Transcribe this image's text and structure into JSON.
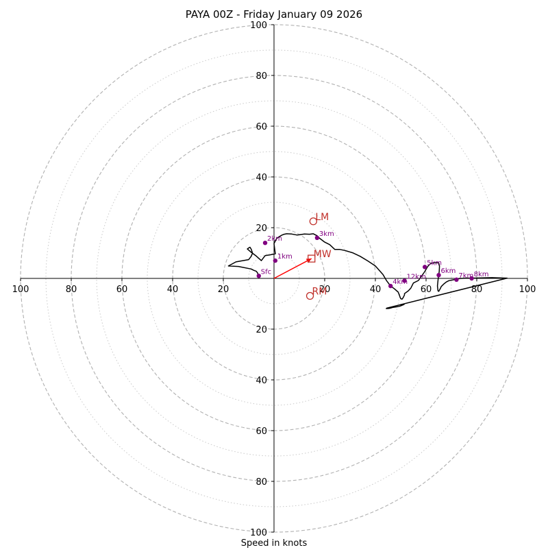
{
  "chart_data": {
    "type": "scatter",
    "title": "PAYA 00Z - Friday January 09 2026",
    "xlabel": "Speed in knots",
    "units": "knots",
    "range": [
      0,
      100
    ],
    "rings_major": [
      20,
      40,
      60,
      80,
      100
    ],
    "rings_minor": [
      10,
      30,
      50,
      70,
      90
    ],
    "tick_labels": {
      "left": [
        "100",
        "80",
        "60",
        "40",
        "20"
      ],
      "right": [
        "20",
        "40",
        "60",
        "80",
        "100"
      ],
      "top": [
        "20",
        "40",
        "60",
        "80",
        "100"
      ],
      "bottom": [
        "20",
        "40",
        "60",
        "80",
        "100"
      ]
    },
    "tick_values": [
      20,
      40,
      60,
      80,
      100
    ],
    "hodograph": {
      "name": "wind profile",
      "u": [
        -6,
        -6.5,
        -7,
        -8,
        -9,
        -14,
        -18,
        -15,
        -10,
        -9,
        -8.5,
        -9,
        -9.5,
        -10,
        -10.5,
        -9,
        -7,
        -5,
        -3.5,
        -1.5,
        0.5,
        0,
        1,
        2,
        3,
        4,
        5,
        7,
        9,
        10,
        12,
        14,
        15.5,
        17,
        18,
        20,
        22,
        24,
        26,
        28,
        31,
        34,
        37,
        40,
        43,
        44.5,
        46,
        47.5,
        49,
        50,
        50.5,
        51,
        51.5,
        51.5,
        53,
        54,
        55,
        57,
        58,
        59.5,
        60.5,
        61,
        62,
        64,
        65,
        65.3,
        65.2,
        64.8,
        64.5,
        64.7,
        65,
        65.5,
        66,
        67,
        68,
        69,
        71,
        72,
        74,
        76,
        78,
        82,
        86,
        89,
        92,
        44.5,
        44.3,
        45.5,
        46,
        47,
        48.5,
        49.5,
        50,
        50.5,
        51,
        51.5
      ],
      "v": [
        1,
        2.2,
        2.8,
        3.2,
        3.7,
        4.7,
        4.9,
        6.5,
        7.4,
        8.7,
        10,
        11.5,
        12.3,
        12,
        11.6,
        10.3,
        8.8,
        7,
        9,
        9.3,
        9.7,
        13.7,
        15.7,
        16.4,
        17,
        17.4,
        17.6,
        17.5,
        17.1,
        17.2,
        17.5,
        17.4,
        17.6,
        16.8,
        15.8,
        14.3,
        13.3,
        11.4,
        11.4,
        11.0,
        10.1,
        8.7,
        6.9,
        4.9,
        1.5,
        -1.0,
        -3.0,
        -4.1,
        -5.4,
        -8.0,
        -8.2,
        -7.5,
        -6.5,
        -6,
        -4.9,
        -3.8,
        -1.8,
        -0.8,
        0.6,
        2.7,
        4.5,
        5.1,
        6.0,
        6.2,
        6.1,
        4.8,
        2.7,
        0.2,
        -3.0,
        -4.9,
        -5.1,
        -4.2,
        -3.2,
        -2.2,
        -1.4,
        -0.9,
        -0.5,
        -0.2,
        0.0,
        0.1,
        0.1,
        0.2,
        0.3,
        0.2,
        0.1,
        -11.7,
        -11.9,
        -11.8,
        -11.7,
        -11.4,
        -11.2,
        -11.0,
        -10.8,
        -10.6,
        -10.4,
        -10.2
      ]
    },
    "height_points": [
      {
        "label": "Sfc",
        "u": -6,
        "v": 1
      },
      {
        "label": "1km",
        "u": 0.5,
        "v": 7
      },
      {
        "label": "2km",
        "u": -3.5,
        "v": 14
      },
      {
        "label": "3km",
        "u": 17,
        "v": 16
      },
      {
        "label": "4km",
        "u": 46,
        "v": -3
      },
      {
        "label": "5km",
        "u": 59.5,
        "v": 4.5
      },
      {
        "label": "6km",
        "u": 65,
        "v": 1.3
      },
      {
        "label": "7km",
        "u": 72,
        "v": -0.5
      },
      {
        "label": "8km",
        "u": 78,
        "v": 0.0
      },
      {
        "label": "12km",
        "u": 51.5,
        "v": -0.9
      }
    ],
    "markers": [
      {
        "label": "LM",
        "symbol": "circle",
        "u": 15.5,
        "v": 22.5
      },
      {
        "label": "MW",
        "symbol": "square",
        "u": 14.8,
        "v": 7.8
      },
      {
        "label": "RM",
        "symbol": "circle",
        "u": 14.2,
        "v": -6.9
      }
    ],
    "storm_motion_vector": {
      "from": [
        0,
        0
      ],
      "to": [
        14.8,
        7.8
      ],
      "color": "#ff0000"
    },
    "colors": {
      "line": "#000000",
      "points": "#800080",
      "markers": "#c0302a",
      "arrow": "#ff0000",
      "rings": "#b0b0b0"
    }
  }
}
